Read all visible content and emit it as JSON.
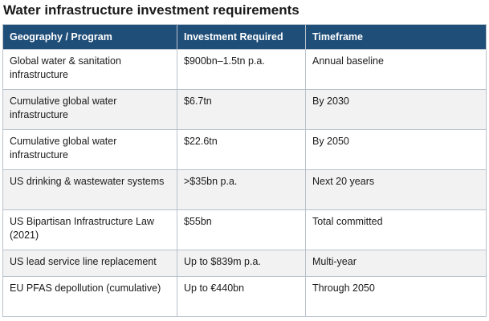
{
  "title": "Water infrastructure investment requirements",
  "table": {
    "headers": [
      "Geography / Program",
      "Investment Required",
      "Timeframe"
    ],
    "rows": [
      {
        "geography": "Global water & sanitation infrastructure",
        "investment": "$900bn–1.5tn p.a.",
        "timeframe": "Annual baseline"
      },
      {
        "geography": "Cumulative global water infrastructure",
        "investment": "$6.7tn",
        "timeframe": "By 2030"
      },
      {
        "geography": "Cumulative global water infrastructure",
        "investment": "$22.6tn",
        "timeframe": "By 2050"
      },
      {
        "geography": "US drinking & wastewater systems",
        "investment": ">$35bn p.a.",
        "timeframe": "Next 20 years"
      },
      {
        "geography": "US Bipartisan Infrastructure Law (2021)",
        "investment": "$55bn",
        "timeframe": "Total committed"
      },
      {
        "geography": "US lead service line replacement",
        "investment": "Up to $839m p.a.",
        "timeframe": "Multi-year"
      },
      {
        "geography": "EU PFAS depollution (cumulative)",
        "investment": "Up to €440bn",
        "timeframe": "Through 2050"
      }
    ]
  }
}
